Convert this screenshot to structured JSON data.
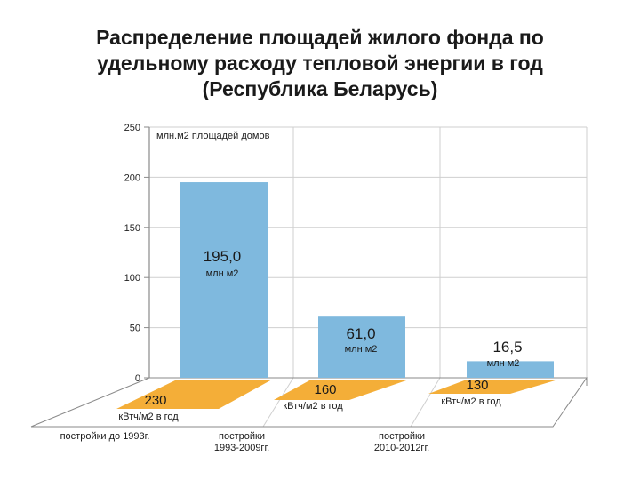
{
  "title_lines": [
    "Распределение площадей жилого фонда по",
    "удельному расходу тепловой энергии в год",
    "(Республика Беларусь)"
  ],
  "chart_data": {
    "type": "bar",
    "ylabel": "млн.м2 площадей домов",
    "ylim": [
      0,
      250
    ],
    "yticks": [
      0,
      50,
      100,
      150,
      200,
      250
    ],
    "grid": true,
    "categories": [
      [
        "постройки до 1993г."
      ],
      [
        "постройки",
        "1993-2009гг."
      ],
      [
        "постройки",
        "2010-2012гг."
      ]
    ],
    "values": [
      195.0,
      61.0,
      16.5
    ],
    "value_labels": [
      "195,0",
      "61,0",
      "16,5"
    ],
    "value_unit": "млн м2",
    "floor_values": [
      "230",
      "160",
      "130"
    ],
    "floor_unit": "кВтч/м2 в год",
    "colors": {
      "bar": "#7fb9de",
      "floor": "#f4ae38",
      "axis": "#8a8a8a",
      "grid": "#cfcfcf"
    }
  }
}
